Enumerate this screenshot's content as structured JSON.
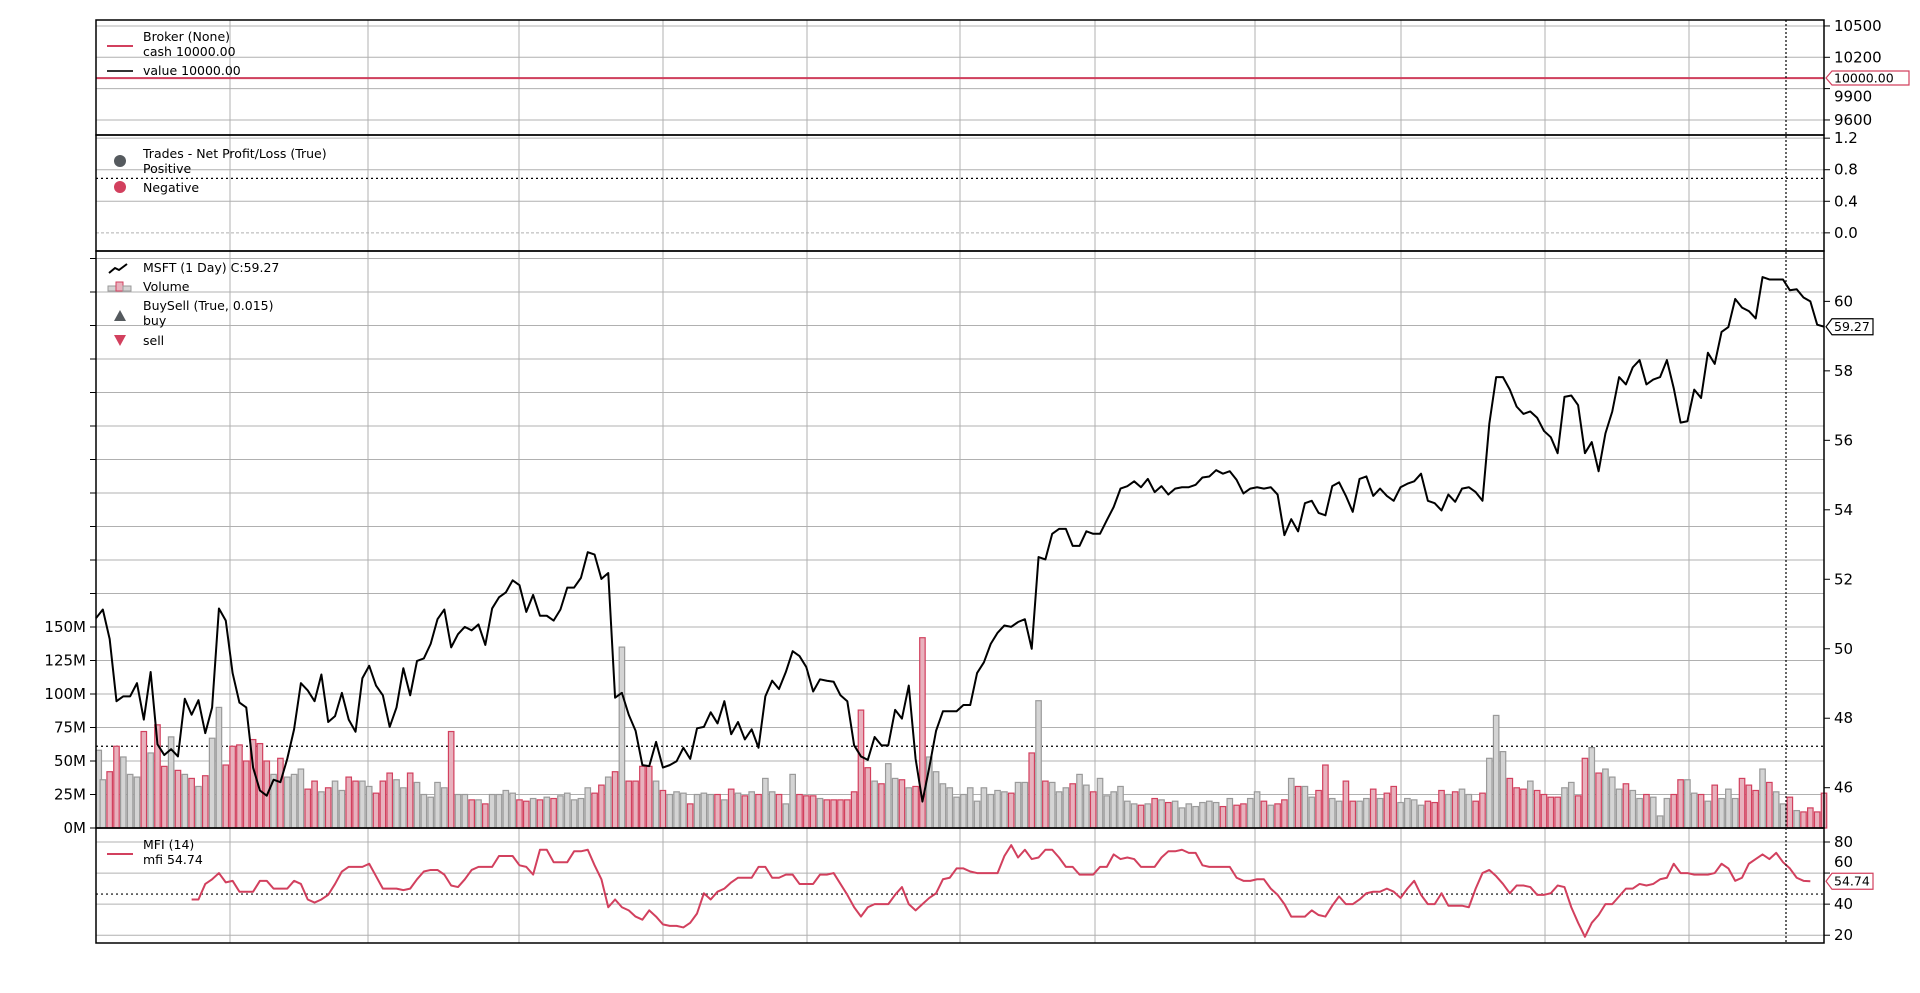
{
  "colors": {
    "red": "#d2405e",
    "pink_fill": "#e8b1bd",
    "grey_fill": "#d4d4d4",
    "grey_edge": "#9a9a9a",
    "grid": "#b0b0b0",
    "dark": "#555a5e"
  },
  "chart_data": [
    {
      "type": "line",
      "panel": "broker",
      "legend": {
        "title": "Broker (None)",
        "cash": "cash 10000.00",
        "value": "value 10000.00"
      },
      "cash": 10000,
      "value": 10000,
      "tag": "10000.00",
      "yticks": [
        10500,
        10200,
        9900,
        9600
      ],
      "ytick_labels": [
        "10500",
        "10200",
        "9900",
        "9600"
      ],
      "ylim": [
        9456,
        10557
      ],
      "grid": true
    },
    {
      "type": "scatter",
      "panel": "trades",
      "legend": {
        "title": "Trades - Net Profit/Loss (True)",
        "positive": "Positive",
        "negative": "Negative"
      },
      "yticks": [
        1.2,
        0.8,
        0.4,
        0.0
      ],
      "ytick_labels": [
        "1.2",
        "0.8",
        "0.4",
        "0.0"
      ],
      "reference_line": 0.69,
      "ylim": [
        -0.23,
        1.24
      ],
      "points": [],
      "grid": true
    },
    {
      "type": "line",
      "panel": "price",
      "legend": {
        "symbol": "MSFT (1 Day) C:59.27",
        "volume": "Volume",
        "buysell": "BuySell (True, 0.015)",
        "buy": "buy",
        "sell": "sell"
      },
      "tag": "59.27",
      "yticks": [
        60,
        58,
        56,
        54,
        52,
        50,
        48,
        46
      ],
      "ytick_labels": [
        "60",
        "58",
        "56",
        "54",
        "52",
        "50",
        "48",
        "46"
      ],
      "ylim": [
        44.84,
        61.45
      ],
      "volume_ticks": [
        150,
        125,
        100,
        75,
        50,
        25,
        0
      ],
      "volume_tick_labels": [
        "150M",
        "125M",
        "100M",
        "75M",
        "50M",
        "25M",
        "0M"
      ],
      "volume_reference_line": 61,
      "close": [
        50.88,
        51.13,
        50.28,
        48.49,
        48.63,
        48.63,
        49.01,
        47.96,
        49.33,
        47.25,
        46.94,
        47.11,
        46.9,
        48.56,
        48.1,
        48.52,
        47.57,
        48.31,
        51.16,
        50.81,
        49.3,
        48.45,
        48.31,
        46.58,
        45.92,
        45.77,
        46.23,
        46.16,
        46.83,
        47.68,
        49.01,
        48.8,
        48.49,
        49.26,
        47.89,
        48.06,
        48.73,
        47.96,
        47.61,
        49.15,
        49.51,
        48.94,
        48.66,
        47.75,
        48.31,
        49.44,
        48.66,
        49.65,
        49.72,
        50.14,
        50.85,
        51.13,
        50.04,
        50.42,
        50.63,
        50.53,
        50.7,
        50.11,
        51.16,
        51.48,
        51.62,
        51.97,
        51.83,
        51.06,
        51.55,
        50.95,
        50.95,
        50.81,
        51.13,
        51.76,
        51.76,
        52.04,
        52.78,
        52.71,
        52.01,
        52.18,
        48.59,
        48.73,
        48.1,
        47.64,
        46.65,
        46.62,
        47.32,
        46.58,
        46.65,
        46.76,
        47.15,
        46.83,
        47.71,
        47.75,
        48.17,
        47.85,
        48.49,
        47.54,
        47.89,
        47.39,
        47.68,
        47.15,
        48.63,
        49.08,
        48.84,
        49.33,
        49.93,
        49.79,
        49.47,
        48.77,
        49.12,
        49.08,
        49.05,
        48.66,
        48.49,
        47.22,
        46.9,
        46.8,
        47.46,
        47.22,
        47.22,
        48.24,
        47.99,
        48.94,
        46.83,
        45.6,
        46.58,
        47.64,
        48.2,
        48.2,
        48.2,
        48.38,
        48.38,
        49.3,
        49.61,
        50.14,
        50.46,
        50.67,
        50.63,
        50.77,
        50.85,
        50.0,
        52.64,
        52.57,
        53.31,
        53.45,
        53.45,
        52.96,
        52.96,
        53.38,
        53.31,
        53.31,
        53.7,
        54.08,
        54.61,
        54.68,
        54.82,
        54.65,
        54.89,
        54.51,
        54.68,
        54.44,
        54.61,
        54.65,
        54.65,
        54.72,
        54.93,
        54.96,
        55.14,
        55.04,
        55.11,
        54.86,
        54.47,
        54.61,
        54.65,
        54.61,
        54.65,
        54.44,
        53.27,
        53.73,
        53.38,
        54.19,
        54.26,
        53.91,
        53.84,
        54.68,
        54.79,
        54.4,
        53.94,
        54.89,
        54.96,
        54.4,
        54.61,
        54.4,
        54.26,
        54.65,
        54.75,
        54.82,
        55.04,
        54.26,
        54.19,
        53.98,
        54.44,
        54.23,
        54.61,
        54.65,
        54.51,
        54.26,
        56.48,
        57.82,
        57.82,
        57.46,
        56.97,
        56.76,
        56.83,
        56.65,
        56.27,
        56.09,
        55.63,
        57.25,
        57.29,
        57.01,
        55.63,
        55.95,
        55.11,
        56.2,
        56.83,
        57.82,
        57.61,
        58.1,
        58.31,
        57.61,
        57.75,
        57.82,
        58.31,
        57.5,
        56.51,
        56.55,
        57.46,
        57.22,
        58.52,
        58.2,
        59.12,
        59.26,
        60.07,
        59.82,
        59.72,
        59.51,
        60.7,
        60.63,
        60.63,
        60.63,
        60.32,
        60.35,
        60.11,
        60.0,
        59.33,
        59.27
      ],
      "volume_millions": [
        58,
        36,
        42,
        61,
        53,
        40,
        38,
        72,
        56,
        77,
        46,
        68,
        43,
        40,
        37,
        31,
        39,
        67,
        90,
        47,
        61,
        62,
        50,
        66,
        63,
        50,
        40,
        52,
        38,
        40,
        44,
        29,
        35,
        27,
        30,
        35,
        28,
        38,
        35,
        35,
        31,
        26,
        35,
        41,
        36,
        30,
        41,
        34,
        25,
        23,
        34,
        30,
        72,
        25,
        25,
        21,
        21,
        18,
        25,
        25,
        28,
        26,
        21,
        20,
        22,
        21,
        23,
        22,
        24,
        26,
        21,
        22,
        30,
        26,
        32,
        38,
        42,
        135,
        35,
        35,
        46,
        46,
        35,
        28,
        25,
        27,
        26,
        18,
        25,
        26,
        25,
        25,
        21,
        29,
        26,
        24,
        27,
        25,
        37,
        27,
        25,
        18,
        40,
        25,
        24,
        24,
        22,
        21,
        21,
        21,
        21,
        27,
        88,
        45,
        35,
        33,
        48,
        37,
        36,
        30,
        31,
        142,
        53,
        42,
        33,
        30,
        23,
        25,
        30,
        20,
        30,
        25,
        28,
        27,
        26,
        34,
        34,
        56,
        95,
        35,
        34,
        27,
        30,
        33,
        40,
        32,
        27,
        37,
        24,
        27,
        31,
        20,
        18,
        17,
        18,
        22,
        21,
        19,
        20,
        15,
        18,
        16,
        19,
        20,
        19,
        16,
        22,
        17,
        18,
        22,
        27,
        20,
        17,
        18,
        21,
        37,
        31,
        31,
        23,
        28,
        47,
        22,
        20,
        35,
        20,
        20,
        22,
        29,
        22,
        26,
        31,
        19,
        22,
        21,
        17,
        20,
        19,
        28,
        25,
        27,
        29,
        25,
        20,
        26,
        52,
        84,
        57,
        37,
        30,
        29,
        35,
        28,
        25,
        23,
        23,
        30,
        34,
        24,
        52,
        60,
        41,
        44,
        38,
        29,
        33,
        28,
        22,
        25,
        23,
        9,
        22,
        25,
        36,
        36,
        26,
        25,
        20,
        32,
        22,
        29,
        22,
        37,
        32,
        28,
        44,
        34,
        27,
        18,
        23,
        13,
        12,
        15,
        12,
        26
      ],
      "grid": true
    },
    {
      "type": "line",
      "panel": "mfi",
      "legend": {
        "title": "MFI (14)",
        "value": "mfi 54.74"
      },
      "tag": "54.74",
      "yticks": [
        80,
        60,
        40,
        20
      ],
      "ytick_labels": [
        "80",
        "60",
        "40",
        "20"
      ],
      "ylim": [
        15,
        89
      ],
      "reference_line": 46.5,
      "start_index": 14,
      "values": [
        43,
        43,
        53,
        56,
        60,
        54,
        55,
        48,
        48,
        48,
        55,
        55,
        50,
        50,
        50,
        55,
        53,
        43,
        41,
        43,
        46,
        53,
        61,
        64,
        64,
        64,
        66,
        58,
        50,
        50,
        50,
        49,
        50,
        56,
        61,
        62,
        62,
        59,
        52,
        51,
        56,
        62,
        64,
        64,
        64,
        71,
        71,
        71,
        65,
        64,
        59,
        75,
        75,
        67,
        67,
        67,
        74,
        74,
        75,
        65,
        56,
        38,
        43,
        38,
        36,
        32,
        30,
        36,
        32,
        27,
        26,
        26,
        25,
        28,
        34,
        47,
        43,
        48,
        50,
        54,
        57,
        57,
        57,
        64,
        64,
        57,
        57,
        59,
        59,
        53,
        53,
        53,
        59,
        59,
        60,
        53,
        46,
        38,
        32,
        38,
        40,
        40,
        40,
        46,
        51,
        40,
        36,
        40,
        44,
        47,
        56,
        57,
        63,
        63,
        61,
        60,
        60,
        60,
        60,
        71,
        78,
        70,
        75,
        69,
        70,
        75,
        75,
        70,
        64,
        64,
        59,
        59,
        59,
        64,
        64,
        72,
        69,
        70,
        69,
        64,
        64,
        64,
        70,
        74,
        74,
        75,
        73,
        73,
        65,
        64,
        64,
        64,
        64,
        57,
        55,
        55,
        56,
        56,
        50,
        46,
        40,
        32,
        32,
        32,
        36,
        33,
        32,
        39,
        45,
        40,
        40,
        43,
        47,
        48,
        48,
        50,
        48,
        44,
        50,
        55,
        46,
        40,
        40,
        47,
        39,
        39,
        39,
        38,
        50,
        60,
        62,
        58,
        53,
        47,
        52,
        52,
        51,
        46,
        46,
        47,
        52,
        51,
        38,
        28,
        19,
        28,
        33,
        40,
        40,
        45,
        50,
        50,
        53,
        52,
        53,
        56,
        57,
        66,
        60,
        60,
        59,
        59,
        59,
        60,
        66,
        63,
        55,
        57,
        66,
        69,
        72,
        69,
        73,
        67,
        63,
        57,
        55,
        54.74
      ],
      "grid": true
    }
  ]
}
